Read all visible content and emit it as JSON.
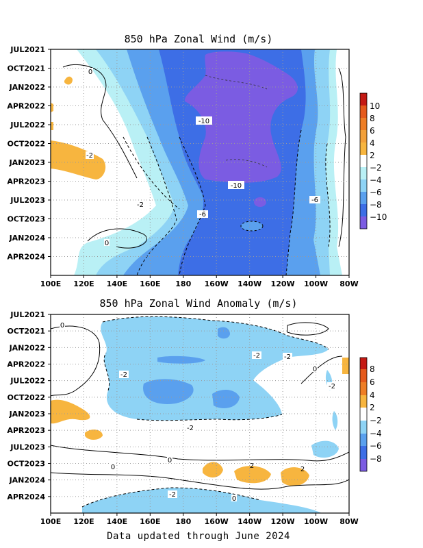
{
  "colors": {
    "frame": "#000000",
    "grid": "#9a9a9a",
    "neg2": "#b9f0f5",
    "neg4": "#8ed3f5",
    "neg6": "#5aa0ee",
    "neg8": "#3d6ee6",
    "neg10": "#7b5ce2",
    "pos2": "#f7b53f",
    "pos4": "#f2a03a",
    "pos6": "#ee7e26",
    "pos8": "#e55a1c",
    "pos10": "#c41a14",
    "neutral": "#ffffff"
  },
  "footer": "Data updated through June 2024",
  "chart_data": [
    {
      "type": "heatmap",
      "title": "850 hPa Zonal Wind (m/s)",
      "x_ticks": [
        "100E",
        "120E",
        "140E",
        "160E",
        "180",
        "160W",
        "140W",
        "120W",
        "100W",
        "80W"
      ],
      "y_ticks": [
        "JUL2021",
        "OCT2021",
        "JAN2022",
        "APR2022",
        "JUL2022",
        "OCT2022",
        "JAN2023",
        "APR2023",
        "JUL2023",
        "OCT2023",
        "JAN2024",
        "APR2024"
      ],
      "xlim": [
        "100E",
        "80W"
      ],
      "ylim": [
        "JUL2021",
        "JUN2024"
      ],
      "grid": true,
      "colorbar": {
        "labels": [
          "10",
          "8",
          "6",
          "4",
          "2",
          "−2",
          "−4",
          "−6",
          "−8",
          "−10"
        ]
      },
      "contour_labels": [
        "0",
        "0",
        "-2",
        "-2",
        "-10",
        "-10",
        "-6",
        "-6"
      ]
    },
    {
      "type": "heatmap",
      "title": "850 hPa Zonal Wind Anomaly (m/s)",
      "x_ticks": [
        "100E",
        "120E",
        "140E",
        "160E",
        "180",
        "160W",
        "140W",
        "120W",
        "100W",
        "80W"
      ],
      "y_ticks": [
        "JUL2021",
        "OCT2021",
        "JAN2022",
        "APR2022",
        "JUL2022",
        "OCT2022",
        "JAN2023",
        "APR2023",
        "JUL2023",
        "OCT2023",
        "JAN2024",
        "APR2024"
      ],
      "xlim": [
        "100E",
        "80W"
      ],
      "ylim": [
        "JUL2021",
        "JUN2024"
      ],
      "grid": true,
      "colorbar": {
        "labels": [
          "8",
          "6",
          "4",
          "2",
          "−2",
          "−4",
          "−6",
          "−8"
        ]
      },
      "contour_labels": [
        "0",
        "0",
        "0",
        "0",
        "0",
        "-2",
        "-2",
        "-2",
        "-2",
        "-2",
        "-2",
        "2",
        "2"
      ]
    }
  ]
}
